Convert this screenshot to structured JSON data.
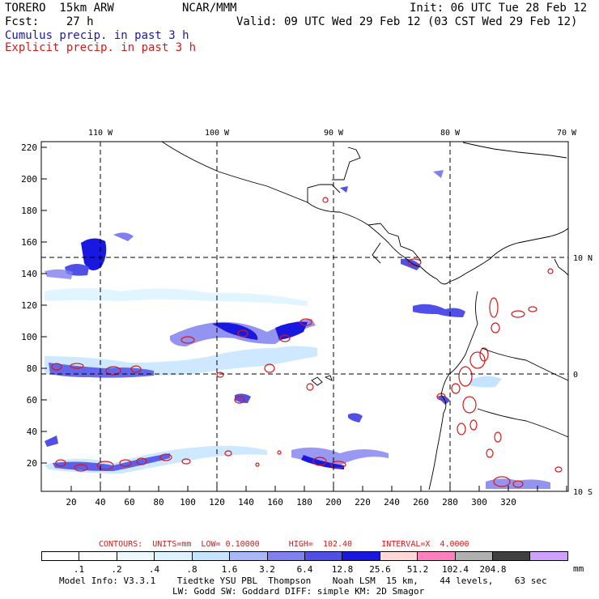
{
  "header": {
    "model": "TORERO  15km ARW",
    "org": "NCAR/MMM",
    "init": "Init: 06 UTC Tue 28 Feb 12",
    "fcst": "Fcst:    27 h",
    "valid": "Valid: 09 UTC Wed 29 Feb 12 (03 CST Wed 29 Feb 12)",
    "cumulus": "Cumulus precip. in past 3 h",
    "explicit": "Explicit precip. in past 3 h"
  },
  "map": {
    "lon_labels": [
      "110 W",
      "100 W",
      "90 W",
      "80 W",
      "70 W"
    ],
    "lat_labels": [
      "10 N",
      "0",
      "10 S"
    ],
    "y_ticks": [
      "220",
      "200",
      "180",
      "160",
      "140",
      "120",
      "100",
      "80",
      "60",
      "40",
      "20"
    ],
    "x_ticks": [
      "20",
      "40",
      "60",
      "80",
      "100",
      "120",
      "140",
      "160",
      "180",
      "200",
      "220",
      "240",
      "260",
      "280",
      "300",
      "320"
    ]
  },
  "contours": {
    "label": "CONTOURS:  UNITS=mm  LOW= 0.10000      HIGH=  102.40      INTERVAL=X  4.0000"
  },
  "colorbar": {
    "colors": [
      "#ffffff",
      "#ffffff",
      "#eef8ff",
      "#ddf4ff",
      "#c5e4ff",
      "#a8b8f8",
      "#8080f0",
      "#5050e8",
      "#1818e0",
      "#ffd8d8",
      "#ff80c0",
      "#b0b0b0",
      "#404040",
      "#d0a0ff"
    ],
    "labels": [
      ".1",
      ".2",
      ".4",
      ".8",
      "1.6",
      "3.2",
      "6.4",
      "12.8",
      "25.6",
      "51.2",
      "102.4",
      "204.8"
    ],
    "units": "mm"
  },
  "footer": {
    "line1": "Model Info: V3.3.1    Tiedtke YSU PBL  Thompson    Noah LSM  15 km,    44 levels,    63 sec",
    "line2": "LW: Godd SW: Goddard DIFF: simple KM: 2D Smagor"
  }
}
